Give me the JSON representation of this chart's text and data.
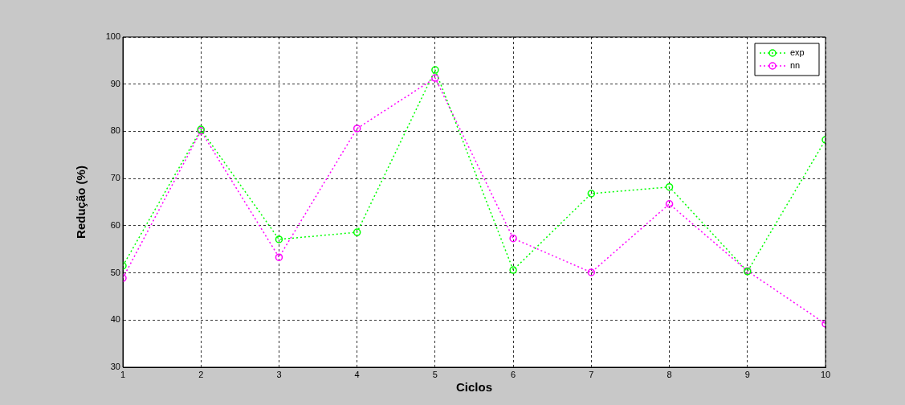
{
  "chart_data": {
    "type": "line",
    "xlabel": "Ciclos",
    "ylabel": "Redução (%)",
    "x": [
      1,
      2,
      3,
      4,
      5,
      6,
      7,
      8,
      9,
      10
    ],
    "series": [
      {
        "name": "exp",
        "color": "#00ff00",
        "values": [
          51.5,
          80.4,
          57.1,
          58.6,
          93,
          50.6,
          66.8,
          68.2,
          50.3,
          78.2
        ]
      },
      {
        "name": "nn",
        "color": "#ff00ff",
        "values": [
          48.9,
          80.1,
          53.3,
          80.6,
          91.3,
          57.3,
          50.1,
          64.6,
          50.4,
          39.2
        ]
      }
    ],
    "xlim": [
      1,
      10
    ],
    "xticks": [
      1,
      2,
      3,
      4,
      5,
      6,
      7,
      8,
      9,
      10
    ],
    "ylim": [
      30,
      100
    ],
    "yticks": [
      30,
      40,
      50,
      60,
      70,
      80,
      90,
      100
    ],
    "grid": true,
    "legend": "top right",
    "marker": "circle",
    "line_style": "dotted"
  }
}
